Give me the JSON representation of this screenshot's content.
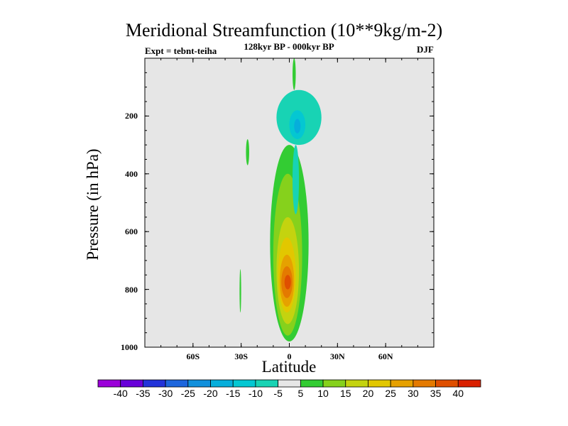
{
  "chart_data": {
    "type": "heatmap",
    "title": "Meridional Streamfunction (10**9kg/m-2)",
    "left_string": "Expt = tebnt-teiha",
    "center_string": "128kyr BP - 000kyr BP",
    "right_string": "DJF",
    "xlabel": "Latitude",
    "ylabel": "Pressure (in hPa)",
    "xlim": [
      -90,
      90
    ],
    "ylim": [
      1000,
      0
    ],
    "x_ticks": [
      {
        "value": -60,
        "label": "60S"
      },
      {
        "value": -30,
        "label": "30S"
      },
      {
        "value": 0,
        "label": "0"
      },
      {
        "value": 30,
        "label": "30N"
      },
      {
        "value": 60,
        "label": "60N"
      }
    ],
    "y_ticks": [
      {
        "value": 200,
        "label": "200"
      },
      {
        "value": 400,
        "label": "400"
      },
      {
        "value": 600,
        "label": "600"
      },
      {
        "value": 800,
        "label": "800"
      },
      {
        "value": 1000,
        "label": "1000"
      }
    ],
    "background_color": "#e6e6e6",
    "colorbar": {
      "labels": [
        "-40",
        "-35",
        "-30",
        "-25",
        "-20",
        "-15",
        "-10",
        "-5",
        "5",
        "10",
        "15",
        "20",
        "25",
        "30",
        "35",
        "40"
      ],
      "colors": [
        "#9b00d9",
        "#6800d9",
        "#2233d9",
        "#1d66dd",
        "#1190dc",
        "#06aedb",
        "#04c7d2",
        "#18d3b4",
        "#e6e6e6",
        "#33cc33",
        "#86d11c",
        "#c4d30f",
        "#e2c700",
        "#e6a100",
        "#e47a00",
        "#df4f00",
        "#d92000"
      ]
    },
    "regions": [
      {
        "lat": [
          -12,
          12
        ],
        "p": [
          300,
          980
        ],
        "color": "#33cc33"
      },
      {
        "lat": [
          -10,
          8
        ],
        "p": [
          400,
          960
        ],
        "color": "#86d11c"
      },
      {
        "lat": [
          -8,
          6
        ],
        "p": [
          550,
          920
        ],
        "color": "#c4d30f"
      },
      {
        "lat": [
          -7,
          4
        ],
        "p": [
          620,
          880
        ],
        "color": "#e2c700"
      },
      {
        "lat": [
          -6,
          3
        ],
        "p": [
          680,
          860
        ],
        "color": "#e6a100"
      },
      {
        "lat": [
          -5,
          2
        ],
        "p": [
          720,
          830
        ],
        "color": "#e47a00"
      },
      {
        "lat": [
          -3,
          1
        ],
        "p": [
          750,
          800
        ],
        "color": "#df4f00"
      },
      {
        "lat": [
          -8,
          20
        ],
        "p": [
          110,
          300
        ],
        "color": "#18d3b4"
      },
      {
        "lat": [
          0,
          10
        ],
        "p": [
          180,
          280
        ],
        "color": "#04c7d2"
      },
      {
        "lat": [
          3,
          7
        ],
        "p": [
          210,
          260
        ],
        "color": "#06aedb"
      },
      {
        "lat": [
          2,
          6
        ],
        "p": [
          300,
          540
        ],
        "color": "#18d3b4"
      },
      {
        "lat": [
          -27,
          -25
        ],
        "p": [
          280,
          370
        ],
        "color": "#33cc33"
      },
      {
        "lat": [
          -31,
          -30
        ],
        "p": [
          730,
          880
        ],
        "color": "#33cc33"
      },
      {
        "lat": [
          2,
          4
        ],
        "p": [
          0,
          110
        ],
        "color": "#33cc33"
      }
    ]
  }
}
